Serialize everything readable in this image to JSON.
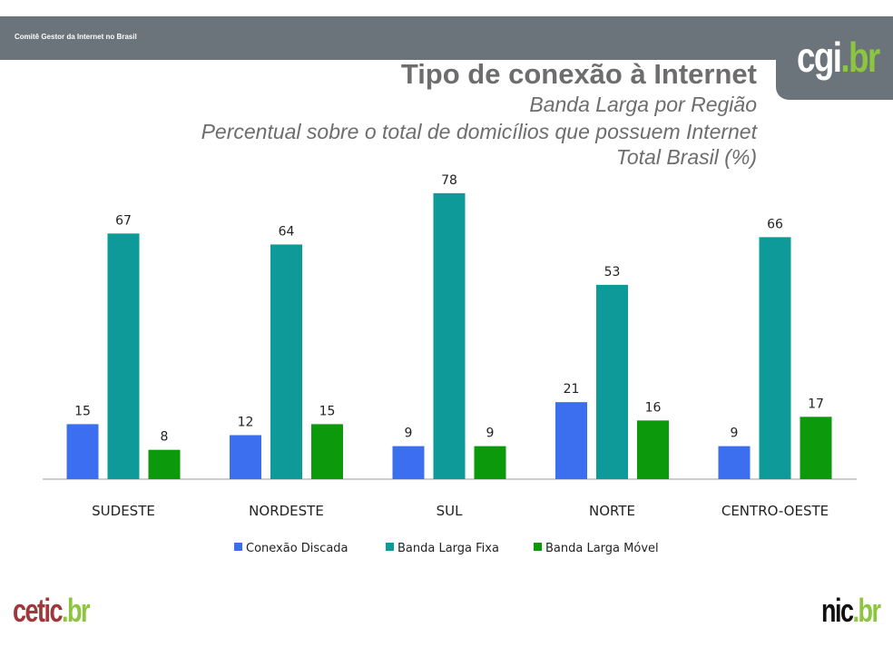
{
  "header": {
    "org": "Comitê Gestor da Internet no Brasil",
    "logo_main": "cgi",
    "logo_suffix": ".br"
  },
  "title": "Tipo de conexão à Internet",
  "subtitles": [
    "Banda Larga por Região",
    "Percentual sobre o total de domicílios que possuem Internet",
    "Total Brasil (%)"
  ],
  "footer": {
    "left_main": "cetic",
    "left_suffix": ".br",
    "right_main": "nic",
    "right_suffix": ".br"
  },
  "chart_data": {
    "type": "bar",
    "title": "Tipo de conexão à Internet",
    "categories": [
      "SUDESTE",
      "NORDESTE",
      "SUL",
      "NORTE",
      "CENTRO-OESTE"
    ],
    "series": [
      {
        "name": "Conexão Discada",
        "color": "#3b6ff0",
        "values": [
          15,
          12,
          9,
          21,
          9
        ]
      },
      {
        "name": "Banda Larga Fixa",
        "color": "#0f9a9a",
        "values": [
          67,
          64,
          78,
          53,
          66
        ]
      },
      {
        "name": "Banda Larga Móvel",
        "color": "#0c9a0c",
        "values": [
          8,
          15,
          9,
          16,
          17
        ]
      }
    ],
    "ylim": [
      0,
      80
    ],
    "legend": "bottom",
    "grid": false
  }
}
